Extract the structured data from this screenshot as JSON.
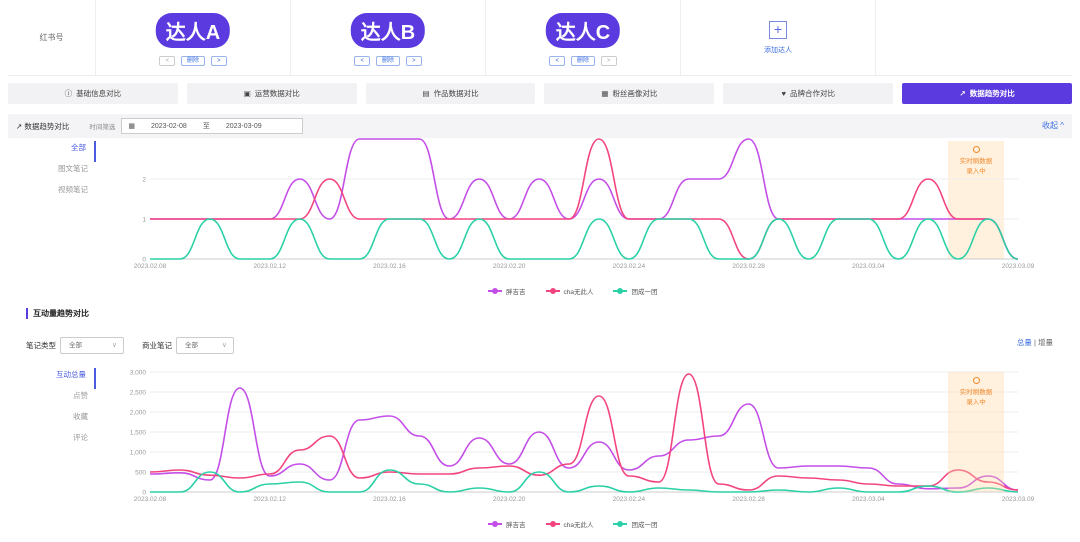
{
  "top": {
    "row_label": "红书号",
    "kols": [
      {
        "name": "达人A",
        "prev": "<",
        "del": "删除",
        "next": ">"
      },
      {
        "name": "达人B",
        "prev": "<",
        "del": "删除",
        "next": ">"
      },
      {
        "name": "达人C",
        "prev": "<",
        "del": "删除",
        "next": ">"
      }
    ],
    "add_label": "添加达人",
    "add_symbol": "+"
  },
  "tabs": [
    {
      "label": "基础信息对比",
      "icon": "info-icon"
    },
    {
      "label": "运营数据对比",
      "icon": "bag-icon"
    },
    {
      "label": "作品数据对比",
      "icon": "doc-icon"
    },
    {
      "label": "粉丝画像对比",
      "icon": "portrait-icon"
    },
    {
      "label": "品牌合作对比",
      "icon": "heart-icon"
    },
    {
      "label": "数据趋势对比",
      "icon": "trend-icon",
      "active": true
    }
  ],
  "toolbar": {
    "title": "数据趋势对比",
    "date_label": "时间筛选",
    "start": "2023-02-08",
    "sep": "至",
    "end": "2023-03-09",
    "collapse": "收起 ^"
  },
  "chart1": {
    "side": [
      "全部",
      "图文笔记",
      "视频笔记"
    ]
  },
  "section2": {
    "title": "互动量趋势对比",
    "filter1_label": "笔记类型",
    "filter1_value": "全部",
    "filter2_label": "商业笔记",
    "filter2_value": "全部",
    "mode_total": "总量",
    "mode_sep": "|",
    "mode_incr": "增量",
    "side": [
      "互动总量",
      "点赞",
      "收藏",
      "评论"
    ]
  },
  "realtime": {
    "line1": "实时刷数据",
    "line2": "录入中"
  },
  "colors": {
    "s1": "#c44ee8",
    "s2": "#f2457f",
    "s3": "#2ad0a6",
    "accent": "#5b3be0"
  },
  "chart_data": [
    {
      "type": "line",
      "title": "数据趋势对比",
      "x": [
        "2023.02.08",
        "2023.02.09",
        "2023.02.10",
        "2023.02.11",
        "2023.02.12",
        "2023.02.13",
        "2023.02.14",
        "2023.02.15",
        "2023.02.16",
        "2023.02.17",
        "2023.02.18",
        "2023.02.19",
        "2023.02.20",
        "2023.02.21",
        "2023.02.22",
        "2023.02.23",
        "2023.02.24",
        "2023.02.25",
        "2023.02.26",
        "2023.02.27",
        "2023.02.28",
        "2023.03.01",
        "2023.03.02",
        "2023.03.03",
        "2023.03.04",
        "2023.03.05",
        "2023.03.06",
        "2023.03.07",
        "2023.03.08",
        "2023.03.09"
      ],
      "xticks": [
        "2023.02.08",
        "2023.02.12",
        "2023.02.16",
        "2023.02.20",
        "2023.02.24",
        "2023.02.28",
        "2023.03.04",
        "2023.03.09"
      ],
      "yticks": [
        "0",
        "1",
        "2"
      ],
      "ylim": [
        0,
        3
      ],
      "series": [
        {
          "name": "胖吉吉",
          "values": [
            1,
            1,
            1,
            1,
            1,
            2,
            1,
            3,
            3,
            3,
            1,
            2,
            1,
            2,
            1,
            2,
            1,
            1,
            2,
            2,
            3,
            1,
            1,
            1,
            1,
            1,
            1,
            1,
            1,
            0
          ]
        },
        {
          "name": "cha无此人",
          "values": [
            1,
            1,
            1,
            1,
            1,
            1,
            2,
            1,
            1,
            1,
            1,
            1,
            1,
            1,
            1,
            3,
            1,
            1,
            1,
            1,
            0,
            1,
            1,
            1,
            1,
            1,
            2,
            1,
            1,
            0
          ]
        },
        {
          "name": "团成一团",
          "values": [
            0,
            0,
            1,
            0,
            0,
            1,
            0,
            0,
            1,
            1,
            0,
            1,
            0,
            0,
            0,
            1,
            0,
            1,
            1,
            0,
            0,
            1,
            0,
            1,
            1,
            0,
            1,
            0,
            1,
            0
          ]
        }
      ]
    },
    {
      "type": "line",
      "title": "互动量趋势对比",
      "x": [
        "2023.02.08",
        "2023.02.09",
        "2023.02.10",
        "2023.02.11",
        "2023.02.12",
        "2023.02.13",
        "2023.02.14",
        "2023.02.15",
        "2023.02.16",
        "2023.02.17",
        "2023.02.18",
        "2023.02.19",
        "2023.02.20",
        "2023.02.21",
        "2023.02.22",
        "2023.02.23",
        "2023.02.24",
        "2023.02.25",
        "2023.02.26",
        "2023.02.27",
        "2023.02.28",
        "2023.03.01",
        "2023.03.02",
        "2023.03.03",
        "2023.03.04",
        "2023.03.05",
        "2023.03.06",
        "2023.03.07",
        "2023.03.08",
        "2023.03.09"
      ],
      "xticks": [
        "2023.02.08",
        "2023.02.12",
        "2023.02.16",
        "2023.02.20",
        "2023.02.24",
        "2023.02.28",
        "2023.03.04",
        "2023.03.09"
      ],
      "yticks": [
        "0",
        "500",
        "1,000",
        "1,500",
        "2,000",
        "2,500",
        "3,000"
      ],
      "ylim": [
        0,
        3000
      ],
      "series": [
        {
          "name": "胖吉吉",
          "values": [
            450,
            480,
            300,
            2600,
            400,
            700,
            300,
            1800,
            1900,
            1400,
            650,
            1350,
            700,
            1500,
            600,
            1250,
            550,
            900,
            1300,
            1400,
            2200,
            600,
            650,
            650,
            600,
            200,
            80,
            100,
            400,
            50
          ]
        },
        {
          "name": "cha无此人",
          "values": [
            500,
            550,
            420,
            350,
            450,
            1050,
            1400,
            350,
            500,
            450,
            450,
            600,
            650,
            420,
            700,
            2400,
            400,
            250,
            2950,
            200,
            50,
            400,
            350,
            300,
            200,
            150,
            150,
            550,
            250,
            50
          ]
        },
        {
          "name": "团成一团",
          "values": [
            0,
            0,
            500,
            0,
            200,
            250,
            0,
            0,
            550,
            200,
            0,
            100,
            0,
            500,
            0,
            150,
            0,
            100,
            50,
            0,
            0,
            50,
            0,
            100,
            0,
            0,
            150,
            0,
            100,
            0
          ]
        }
      ]
    }
  ]
}
